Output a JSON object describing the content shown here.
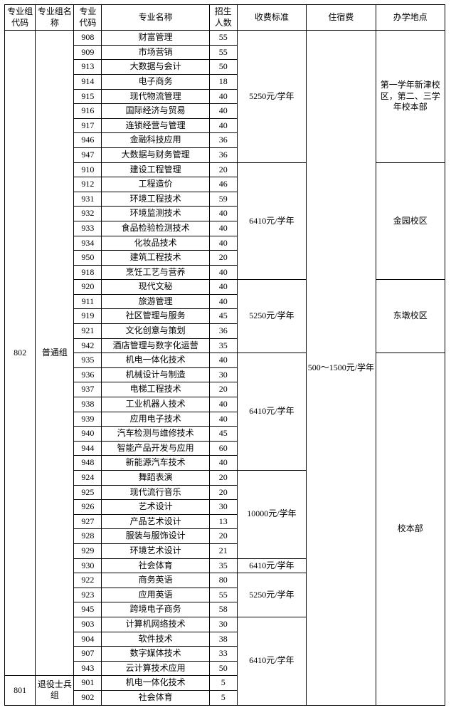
{
  "headers": {
    "group_code": "专业组代码",
    "group_name": "专业组名称",
    "major_code": "专业代码",
    "major_name": "专业名称",
    "enroll": "招生人数",
    "fee": "收费标准",
    "dorm": "住宿费",
    "location": "办学地点"
  },
  "dorm_fee": "500～1500元/学年",
  "group_802_code": "802",
  "group_802_name": "普通组",
  "group_801_code": "801",
  "group_801_name": "退役士兵组",
  "fees": {
    "f5250": "5250元/学年",
    "f6410": "6410元/学年",
    "f10000": "10000元/学年"
  },
  "locations": {
    "loc1": "第一学年新津校区，第二、三学年校本部",
    "loc2": "金园校区",
    "loc3": "东墩校区",
    "loc4": "校本部"
  },
  "rows": {
    "r0": {
      "code": "908",
      "name": "财富管理",
      "n": "55"
    },
    "r1": {
      "code": "909",
      "name": "市场营销",
      "n": "55"
    },
    "r2": {
      "code": "913",
      "name": "大数据与会计",
      "n": "50"
    },
    "r3": {
      "code": "914",
      "name": "电子商务",
      "n": "18"
    },
    "r4": {
      "code": "915",
      "name": "现代物流管理",
      "n": "40"
    },
    "r5": {
      "code": "916",
      "name": "国际经济与贸易",
      "n": "40"
    },
    "r6": {
      "code": "917",
      "name": "连锁经营与管理",
      "n": "40"
    },
    "r7": {
      "code": "946",
      "name": "金融科技应用",
      "n": "36"
    },
    "r8": {
      "code": "947",
      "name": "大数据与财务管理",
      "n": "36"
    },
    "r9": {
      "code": "910",
      "name": "建设工程管理",
      "n": "20"
    },
    "r10": {
      "code": "912",
      "name": "工程造价",
      "n": "46"
    },
    "r11": {
      "code": "931",
      "name": "环境工程技术",
      "n": "59"
    },
    "r12": {
      "code": "932",
      "name": "环境监测技术",
      "n": "40"
    },
    "r13": {
      "code": "933",
      "name": "食品检验检测技术",
      "n": "40"
    },
    "r14": {
      "code": "934",
      "name": "化妆品技术",
      "n": "40"
    },
    "r15": {
      "code": "950",
      "name": "建筑工程技术",
      "n": "20"
    },
    "r16": {
      "code": "918",
      "name": "烹饪工艺与营养",
      "n": "40"
    },
    "r17": {
      "code": "920",
      "name": "现代文秘",
      "n": "40"
    },
    "r18": {
      "code": "911",
      "name": "旅游管理",
      "n": "40"
    },
    "r19": {
      "code": "919",
      "name": "社区管理与服务",
      "n": "45"
    },
    "r20": {
      "code": "921",
      "name": "文化创意与策划",
      "n": "36"
    },
    "r21": {
      "code": "942",
      "name": "酒店管理与数字化运营",
      "n": "35"
    },
    "r22": {
      "code": "935",
      "name": "机电一体化技术",
      "n": "40"
    },
    "r23": {
      "code": "936",
      "name": "机械设计与制造",
      "n": "30"
    },
    "r24": {
      "code": "937",
      "name": "电梯工程技术",
      "n": "20"
    },
    "r25": {
      "code": "938",
      "name": "工业机器人技术",
      "n": "40"
    },
    "r26": {
      "code": "939",
      "name": "应用电子技术",
      "n": "40"
    },
    "r27": {
      "code": "940",
      "name": "汽车检测与维修技术",
      "n": "45"
    },
    "r28": {
      "code": "944",
      "name": "智能产品开发与应用",
      "n": "60"
    },
    "r29": {
      "code": "948",
      "name": "新能源汽车技术",
      "n": "40"
    },
    "r30": {
      "code": "924",
      "name": "舞蹈表演",
      "n": "20"
    },
    "r31": {
      "code": "925",
      "name": "现代流行音乐",
      "n": "20"
    },
    "r32": {
      "code": "926",
      "name": "艺术设计",
      "n": "30"
    },
    "r33": {
      "code": "927",
      "name": "产品艺术设计",
      "n": "13"
    },
    "r34": {
      "code": "928",
      "name": "服装与服饰设计",
      "n": "20"
    },
    "r35": {
      "code": "929",
      "name": "环境艺术设计",
      "n": "21"
    },
    "r36": {
      "code": "930",
      "name": "社会体育",
      "n": "35"
    },
    "r37": {
      "code": "922",
      "name": "商务英语",
      "n": "80"
    },
    "r38": {
      "code": "923",
      "name": "应用英语",
      "n": "55"
    },
    "r39": {
      "code": "945",
      "name": "跨境电子商务",
      "n": "58"
    },
    "r40": {
      "code": "903",
      "name": "计算机网络技术",
      "n": "30"
    },
    "r41": {
      "code": "904",
      "name": "软件技术",
      "n": "38"
    },
    "r42": {
      "code": "907",
      "name": "数字媒体技术",
      "n": "33"
    },
    "r43": {
      "code": "943",
      "name": "云计算技术应用",
      "n": "50"
    },
    "r44": {
      "code": "901",
      "name": "机电一体化技术",
      "n": "5"
    },
    "r45": {
      "code": "902",
      "name": "社会体育",
      "n": "5"
    }
  }
}
